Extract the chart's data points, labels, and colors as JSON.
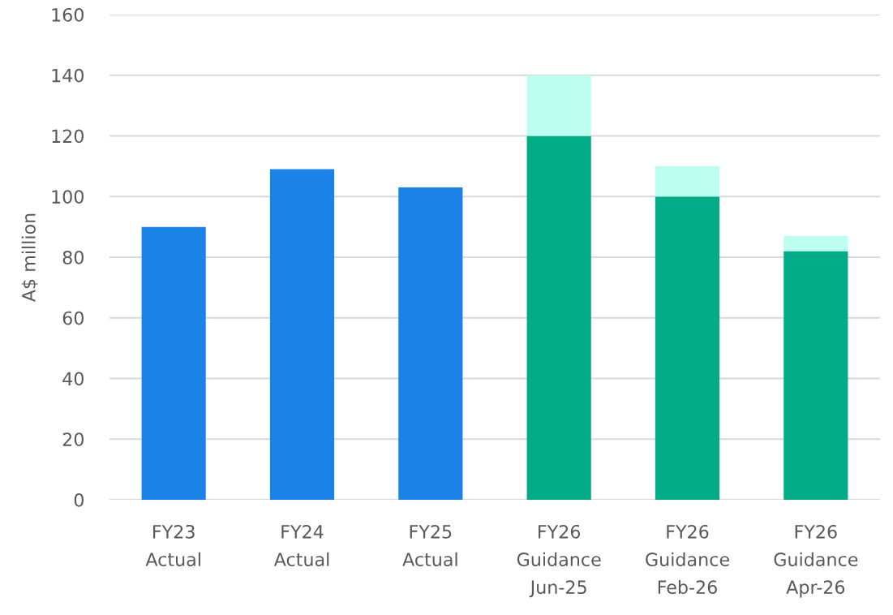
{
  "chart_data": {
    "type": "bar",
    "ylabel": "A$ million",
    "categories": [
      "FY23\nActual",
      "FY24\nActual",
      "FY25\nActual",
      "FY26\nGuidance\nJun-25",
      "FY26\nGuidance\nFeb-26",
      "FY26\nGuidance\nApr-26"
    ],
    "series": [
      {
        "colors": [
          "#1b82e8",
          "#1b82e8",
          "#1b82e8",
          "#00ab86",
          "#00ab86",
          "#00ab86"
        ],
        "values": [
          90,
          109,
          103,
          120,
          100,
          82
        ]
      },
      {
        "color": "#bcfff0",
        "values": [
          null,
          null,
          null,
          20,
          10,
          5
        ]
      }
    ],
    "stacked": true,
    "ylim": [
      0,
      160
    ],
    "yticks": [
      0,
      20,
      40,
      60,
      80,
      100,
      120,
      140,
      160
    ],
    "grid": "y"
  }
}
